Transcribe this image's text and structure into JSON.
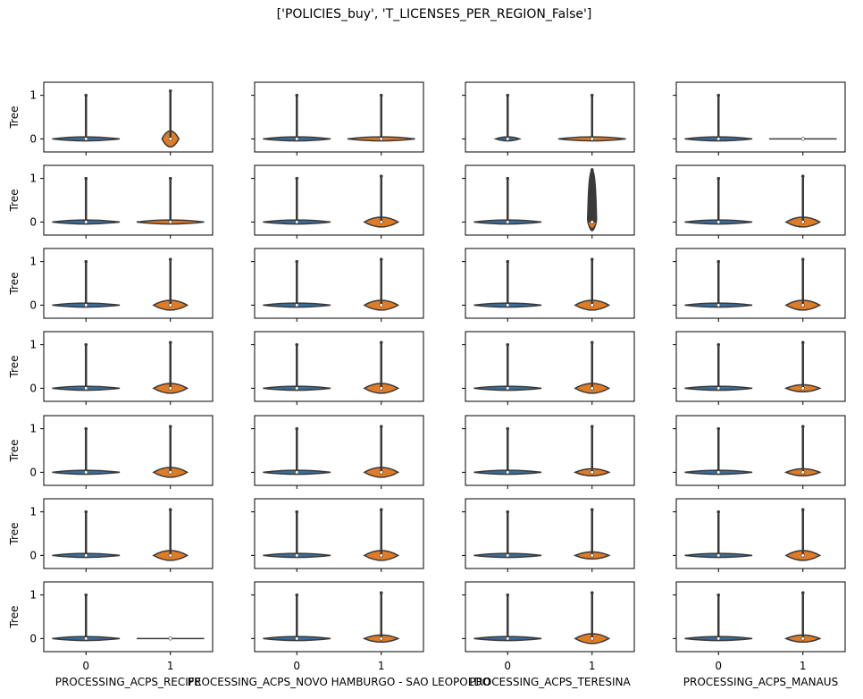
{
  "figure": {
    "title": "['POLICIES_buy', 'T_LICENSES_PER_REGION_False']"
  },
  "chart_data": {
    "type": "violin",
    "title": "['POLICIES_buy', 'T_LICENSES_PER_REGION_False']",
    "grid": "7x4",
    "ylabel": "Tree",
    "ylim": [
      -0.3,
      1.3
    ],
    "yticks": [
      0,
      1
    ],
    "categories": [
      "0",
      "1"
    ],
    "colors": {
      "0": "#3a6f9e",
      "1": "#e07b26",
      "edge": "#3a3a3a"
    },
    "sharey": true,
    "columns": [
      {
        "xlabel": "PROCESSING_ACPS_RECIFE"
      },
      {
        "xlabel": "PROCESSING_ACPS_NOVO HAMBURGO - SAO LEOPOLDO"
      },
      {
        "xlabel": "PROCESSING_ACPS_TERESINA"
      },
      {
        "xlabel": "PROCESSING_ACPS_MANAUS"
      }
    ],
    "panels": [
      {
        "row": 1,
        "col": 1,
        "violins": [
          {
            "category": "0",
            "min": 0,
            "max": 1,
            "median": 0,
            "shape": "spindle"
          },
          {
            "category": "1",
            "min": -0.05,
            "max": 1.1,
            "median": 0,
            "shape": "bulb"
          }
        ]
      },
      {
        "row": 1,
        "col": 2,
        "violins": [
          {
            "category": "0",
            "min": 0,
            "max": 1,
            "median": 0,
            "shape": "spindle"
          },
          {
            "category": "1",
            "min": 0,
            "max": 1,
            "median": 0,
            "shape": "spindle"
          }
        ]
      },
      {
        "row": 1,
        "col": 3,
        "violins": [
          {
            "category": "0",
            "min": 0,
            "max": 1,
            "median": 0,
            "shape": "small"
          },
          {
            "category": "1",
            "min": 0,
            "max": 1,
            "median": 0,
            "shape": "flat"
          }
        ]
      },
      {
        "row": 1,
        "col": 4,
        "violins": [
          {
            "category": "0",
            "min": 0,
            "max": 1,
            "median": 0,
            "shape": "spindle"
          },
          {
            "category": "1",
            "min": 0,
            "max": 0,
            "median": 0,
            "shape": "line"
          }
        ]
      },
      {
        "row": 2,
        "col": 1,
        "violins": [
          {
            "category": "0",
            "min": 0,
            "max": 1,
            "median": 0,
            "shape": "spindle"
          },
          {
            "category": "1",
            "min": 0,
            "max": 1,
            "median": 0,
            "shape": "spindle"
          }
        ]
      },
      {
        "row": 2,
        "col": 2,
        "violins": [
          {
            "category": "0",
            "min": 0,
            "max": 1,
            "median": 0,
            "shape": "spindle"
          },
          {
            "category": "1",
            "min": 0,
            "max": 1.05,
            "median": 0,
            "shape": "blob"
          }
        ]
      },
      {
        "row": 2,
        "col": 3,
        "violins": [
          {
            "category": "0",
            "min": 0,
            "max": 1,
            "median": 0,
            "shape": "spindle"
          },
          {
            "category": "1",
            "min": -0.2,
            "max": 1.2,
            "median": 0,
            "shape": "column"
          }
        ]
      },
      {
        "row": 2,
        "col": 4,
        "violins": [
          {
            "category": "0",
            "min": 0,
            "max": 1,
            "median": 0,
            "shape": "spindle"
          },
          {
            "category": "1",
            "min": 0,
            "max": 1.05,
            "median": 0,
            "shape": "blob"
          }
        ]
      },
      {
        "row": 3,
        "col": 1,
        "violins": [
          {
            "category": "0",
            "min": 0,
            "max": 1,
            "median": 0,
            "shape": "spindle"
          },
          {
            "category": "1",
            "min": 0,
            "max": 1.05,
            "median": 0,
            "shape": "blob"
          }
        ]
      },
      {
        "row": 3,
        "col": 2,
        "violins": [
          {
            "category": "0",
            "min": 0,
            "max": 1,
            "median": 0,
            "shape": "spindle"
          },
          {
            "category": "1",
            "min": 0,
            "max": 1.05,
            "median": 0,
            "shape": "blob"
          }
        ]
      },
      {
        "row": 3,
        "col": 3,
        "violins": [
          {
            "category": "0",
            "min": 0,
            "max": 1,
            "median": 0,
            "shape": "spindle"
          },
          {
            "category": "1",
            "min": 0,
            "max": 1.05,
            "median": 0,
            "shape": "blob"
          }
        ]
      },
      {
        "row": 3,
        "col": 4,
        "violins": [
          {
            "category": "0",
            "min": 0,
            "max": 1,
            "median": 0,
            "shape": "spindle"
          },
          {
            "category": "1",
            "min": 0,
            "max": 1.05,
            "median": 0,
            "shape": "blob"
          }
        ]
      },
      {
        "row": 4,
        "col": 1,
        "violins": [
          {
            "category": "0",
            "min": 0,
            "max": 1,
            "median": 0,
            "shape": "spindle"
          },
          {
            "category": "1",
            "min": 0,
            "max": 1.05,
            "median": 0,
            "shape": "blob"
          }
        ]
      },
      {
        "row": 4,
        "col": 2,
        "violins": [
          {
            "category": "0",
            "min": 0,
            "max": 1,
            "median": 0,
            "shape": "spindle"
          },
          {
            "category": "1",
            "min": 0,
            "max": 1.05,
            "median": 0,
            "shape": "blob"
          }
        ]
      },
      {
        "row": 4,
        "col": 3,
        "violins": [
          {
            "category": "0",
            "min": 0,
            "max": 1,
            "median": 0,
            "shape": "spindle"
          },
          {
            "category": "1",
            "min": 0,
            "max": 1.05,
            "median": 0,
            "shape": "blob"
          }
        ]
      },
      {
        "row": 4,
        "col": 4,
        "violins": [
          {
            "category": "0",
            "min": 0,
            "max": 1,
            "median": 0,
            "shape": "spindle"
          },
          {
            "category": "1",
            "min": 0,
            "max": 1.05,
            "median": 0,
            "shape": "wide"
          }
        ]
      },
      {
        "row": 5,
        "col": 1,
        "violins": [
          {
            "category": "0",
            "min": 0,
            "max": 1,
            "median": 0,
            "shape": "spindle"
          },
          {
            "category": "1",
            "min": 0,
            "max": 1.05,
            "median": 0,
            "shape": "blob"
          }
        ]
      },
      {
        "row": 5,
        "col": 2,
        "violins": [
          {
            "category": "0",
            "min": 0,
            "max": 1,
            "median": 0,
            "shape": "spindle"
          },
          {
            "category": "1",
            "min": 0,
            "max": 1.05,
            "median": 0,
            "shape": "blob"
          }
        ]
      },
      {
        "row": 5,
        "col": 3,
        "violins": [
          {
            "category": "0",
            "min": 0,
            "max": 1,
            "median": 0,
            "shape": "spindle"
          },
          {
            "category": "1",
            "min": 0,
            "max": 1.05,
            "median": 0,
            "shape": "wide"
          }
        ]
      },
      {
        "row": 5,
        "col": 4,
        "violins": [
          {
            "category": "0",
            "min": 0,
            "max": 1,
            "median": 0,
            "shape": "spindle"
          },
          {
            "category": "1",
            "min": 0,
            "max": 1.05,
            "median": 0,
            "shape": "wide"
          }
        ]
      },
      {
        "row": 6,
        "col": 1,
        "violins": [
          {
            "category": "0",
            "min": 0,
            "max": 1,
            "median": 0,
            "shape": "spindle"
          },
          {
            "category": "1",
            "min": 0,
            "max": 1.05,
            "median": 0,
            "shape": "blob"
          }
        ]
      },
      {
        "row": 6,
        "col": 2,
        "violins": [
          {
            "category": "0",
            "min": 0,
            "max": 1,
            "median": 0,
            "shape": "spindle"
          },
          {
            "category": "1",
            "min": 0,
            "max": 1.05,
            "median": 0,
            "shape": "blob"
          }
        ]
      },
      {
        "row": 6,
        "col": 3,
        "violins": [
          {
            "category": "0",
            "min": 0,
            "max": 1,
            "median": 0,
            "shape": "spindle"
          },
          {
            "category": "1",
            "min": 0,
            "max": 1.05,
            "median": 0,
            "shape": "wide"
          }
        ]
      },
      {
        "row": 6,
        "col": 4,
        "violins": [
          {
            "category": "0",
            "min": 0,
            "max": 1,
            "median": 0,
            "shape": "spindle"
          },
          {
            "category": "1",
            "min": 0,
            "max": 1.05,
            "median": 0,
            "shape": "blob"
          }
        ]
      },
      {
        "row": 7,
        "col": 1,
        "violins": [
          {
            "category": "0",
            "min": 0,
            "max": 1,
            "median": 0,
            "shape": "spindle"
          },
          {
            "category": "1",
            "min": 0,
            "max": 0,
            "median": 0,
            "shape": "line"
          }
        ]
      },
      {
        "row": 7,
        "col": 2,
        "violins": [
          {
            "category": "0",
            "min": 0,
            "max": 1,
            "median": 0,
            "shape": "spindle"
          },
          {
            "category": "1",
            "min": 0,
            "max": 1.05,
            "median": 0,
            "shape": "wide"
          }
        ]
      },
      {
        "row": 7,
        "col": 3,
        "violins": [
          {
            "category": "0",
            "min": 0,
            "max": 1,
            "median": 0,
            "shape": "spindle"
          },
          {
            "category": "1",
            "min": 0,
            "max": 1.05,
            "median": 0,
            "shape": "blob"
          }
        ]
      },
      {
        "row": 7,
        "col": 4,
        "violins": [
          {
            "category": "0",
            "min": 0,
            "max": 1,
            "median": 0,
            "shape": "spindle"
          },
          {
            "category": "1",
            "min": 0,
            "max": 1.05,
            "median": 0,
            "shape": "wide"
          }
        ]
      }
    ]
  }
}
